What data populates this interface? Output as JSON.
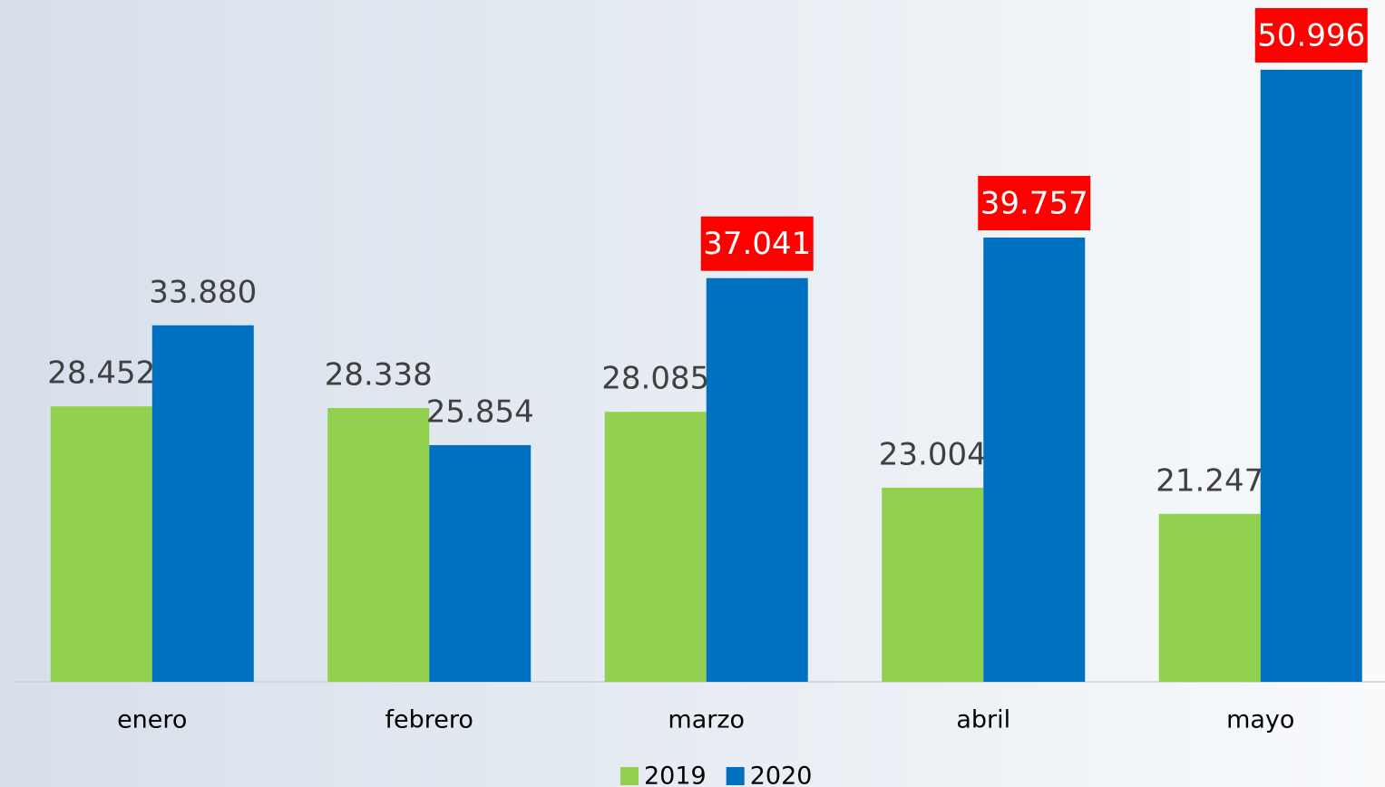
{
  "chart_data": {
    "type": "bar",
    "categories": [
      "enero",
      "febrero",
      "marzo",
      "abril",
      "mayo"
    ],
    "series": [
      {
        "name": "2019",
        "color": "#92d050",
        "values": [
          28452,
          28338,
          28085,
          23004,
          21247
        ],
        "value_labels": [
          "28.452",
          "28.338",
          "28.085",
          "23.004",
          "21.247"
        ]
      },
      {
        "name": "2020",
        "color": "#0070c0",
        "values": [
          33880,
          25854,
          37041,
          39757,
          50996
        ],
        "value_labels": [
          "33.880",
          "25.854",
          "37.041",
          "39.757",
          "50.996"
        ],
        "label_backgrounds": [
          null,
          null,
          "#ff0000",
          "#ff0000",
          "#ff0000"
        ]
      }
    ],
    "ylim": [
      10000,
      55000
    ],
    "grid": false,
    "legend": "bottom"
  }
}
